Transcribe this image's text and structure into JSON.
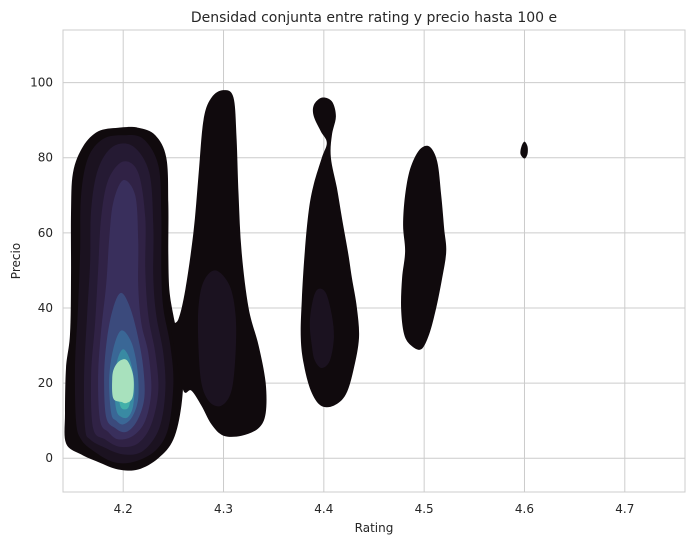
{
  "chart_data": {
    "type": "kde",
    "title": "Densidad conjunta entre rating y precio hasta 100 e",
    "xlabel": "Rating",
    "ylabel": "Precio",
    "xlim": [
      4.14,
      4.76
    ],
    "ylim": [
      -9,
      114
    ],
    "xticks": [
      4.2,
      4.3,
      4.4,
      4.5,
      4.6,
      4.7
    ],
    "yticks": [
      0,
      20,
      40,
      60,
      80,
      100
    ],
    "xtick_labels": [
      "4.2",
      "4.3",
      "4.4",
      "4.5",
      "4.6",
      "4.7"
    ],
    "ytick_labels": [
      "0",
      "20",
      "40",
      "60",
      "80",
      "100"
    ],
    "grid": true,
    "colormap": "mako_r",
    "colors": {
      "grid": "#cccccc",
      "axes_edge": "#cccccc",
      "text": "#262626",
      "levels": [
        "#100a0d",
        "#1b1220",
        "#251a33",
        "#302245",
        "#392f5c",
        "#3b4a7c",
        "#3a6796",
        "#398aa3",
        "#43b0a9",
        "#a8e1bd"
      ]
    },
    "clusters": [
      {
        "x": 4.2,
        "y_range": [
          -3,
          88
        ],
        "peak": [
          4.2,
          20
        ],
        "outline": [
          [
            4.143,
            4
          ],
          [
            4.142,
            12
          ],
          [
            4.143,
            24
          ],
          [
            4.147,
            33
          ],
          [
            4.148,
            48
          ],
          [
            4.148,
            65
          ],
          [
            4.15,
            76
          ],
          [
            4.16,
            83
          ],
          [
            4.175,
            87
          ],
          [
            4.195,
            88
          ],
          [
            4.215,
            88
          ],
          [
            4.232,
            86
          ],
          [
            4.243,
            80
          ],
          [
            4.245,
            68
          ],
          [
            4.245,
            55
          ],
          [
            4.246,
            45
          ],
          [
            4.25,
            38
          ],
          [
            4.255,
            32
          ],
          [
            4.26,
            25
          ],
          [
            4.258,
            14
          ],
          [
            4.25,
            5
          ],
          [
            4.235,
            0
          ],
          [
            4.215,
            -3
          ],
          [
            4.195,
            -3
          ],
          [
            4.175,
            -1
          ],
          [
            4.158,
            1
          ]
        ],
        "levels": [
          [
            [
              4.153,
              10
            ],
            [
              4.152,
              25
            ],
            [
              4.155,
              40
            ],
            [
              4.157,
              55
            ],
            [
              4.158,
              70
            ],
            [
              4.165,
              80
            ],
            [
              4.18,
              85
            ],
            [
              4.2,
              86
            ],
            [
              4.22,
              85
            ],
            [
              4.235,
              78
            ],
            [
              4.238,
              65
            ],
            [
              4.238,
              50
            ],
            [
              4.24,
              40
            ],
            [
              4.247,
              30
            ],
            [
              4.25,
              20
            ],
            [
              4.245,
              8
            ],
            [
              4.232,
              2
            ],
            [
              4.21,
              -1
            ],
            [
              4.19,
              -1
            ],
            [
              4.17,
              2
            ],
            [
              4.158,
              5
            ]
          ],
          [
            [
              4.162,
              8
            ],
            [
              4.161,
              22
            ],
            [
              4.164,
              38
            ],
            [
              4.167,
              52
            ],
            [
              4.168,
              66
            ],
            [
              4.175,
              77
            ],
            [
              4.19,
              83
            ],
            [
              4.21,
              83
            ],
            [
              4.226,
              76
            ],
            [
              4.23,
              62
            ],
            [
              4.23,
              48
            ],
            [
              4.233,
              38
            ],
            [
              4.24,
              28
            ],
            [
              4.242,
              18
            ],
            [
              4.236,
              8
            ],
            [
              4.22,
              2
            ],
            [
              4.2,
              1
            ],
            [
              4.18,
              3
            ],
            [
              4.167,
              5
            ]
          ],
          [
            [
              4.17,
              8
            ],
            [
              4.168,
              22
            ],
            [
              4.172,
              36
            ],
            [
              4.175,
              50
            ],
            [
              4.178,
              64
            ],
            [
              4.185,
              74
            ],
            [
              4.2,
              79
            ],
            [
              4.215,
              76
            ],
            [
              4.222,
              64
            ],
            [
              4.222,
              50
            ],
            [
              4.225,
              38
            ],
            [
              4.232,
              28
            ],
            [
              4.235,
              18
            ],
            [
              4.228,
              9
            ],
            [
              4.215,
              4
            ],
            [
              4.197,
              3
            ],
            [
              4.182,
              5
            ]
          ],
          [
            [
              4.177,
              10
            ],
            [
              4.175,
              22
            ],
            [
              4.178,
              34
            ],
            [
              4.183,
              46
            ],
            [
              4.186,
              58
            ],
            [
              4.19,
              68
            ],
            [
              4.2,
              74
            ],
            [
              4.212,
              70
            ],
            [
              4.215,
              58
            ],
            [
              4.215,
              46
            ],
            [
              4.218,
              36
            ],
            [
              4.225,
              28
            ],
            [
              4.228,
              18
            ],
            [
              4.222,
              10
            ],
            [
              4.21,
              6
            ],
            [
              4.195,
              5
            ],
            [
              4.185,
              7
            ]
          ],
          [
            [
              4.183,
              11
            ],
            [
              4.181,
              22
            ],
            [
              4.184,
              32
            ],
            [
              4.19,
              40
            ],
            [
              4.198,
              44
            ],
            [
              4.207,
              40
            ],
            [
              4.215,
              32
            ],
            [
              4.22,
              24
            ],
            [
              4.221,
              16
            ],
            [
              4.214,
              10
            ],
            [
              4.203,
              7
            ],
            [
              4.192,
              8
            ]
          ],
          [
            [
              4.188,
              12
            ],
            [
              4.186,
              21
            ],
            [
              4.19,
              29
            ],
            [
              4.198,
              34
            ],
            [
              4.208,
              31
            ],
            [
              4.214,
              24
            ],
            [
              4.215,
              16
            ],
            [
              4.209,
              11
            ],
            [
              4.2,
              9
            ],
            [
              4.193,
              10
            ]
          ],
          [
            [
              4.193,
              13
            ],
            [
              4.191,
              20
            ],
            [
              4.194,
              26
            ],
            [
              4.2,
              29
            ],
            [
              4.207,
              26
            ],
            [
              4.211,
              20
            ],
            [
              4.21,
              14
            ],
            [
              4.205,
              11
            ],
            [
              4.198,
              11
            ]
          ],
          [
            [
              4.197,
              14
            ],
            [
              4.195,
              19
            ],
            [
              4.197,
              23
            ],
            [
              4.202,
              25
            ],
            [
              4.206,
              22
            ],
            [
              4.208,
              18
            ],
            [
              4.206,
              14
            ],
            [
              4.202,
              13
            ]
          ],
          [
            [
              4.199,
              15
            ],
            [
              4.198,
              18
            ],
            [
              4.2,
              22
            ],
            [
              4.205,
              22
            ],
            [
              4.207,
              18
            ],
            [
              4.205,
              15
            ]
          ],
          [
            [
              4.19,
              16
            ],
            [
              4.189,
              21
            ],
            [
              4.191,
              24
            ],
            [
              4.197,
              26
            ],
            [
              4.204,
              26
            ],
            [
              4.21,
              22
            ],
            [
              4.21,
              17
            ],
            [
              4.206,
              15
            ],
            [
              4.198,
              15
            ]
          ]
        ]
      },
      {
        "x": 4.3,
        "y_range": [
          7,
          98
        ],
        "outline": [
          [
            4.26,
            18
          ],
          [
            4.252,
            28
          ],
          [
            4.248,
            35
          ],
          [
            4.255,
            37
          ],
          [
            4.262,
            45
          ],
          [
            4.27,
            60
          ],
          [
            4.275,
            75
          ],
          [
            4.28,
            90
          ],
          [
            4.288,
            96
          ],
          [
            4.3,
            98
          ],
          [
            4.31,
            96
          ],
          [
            4.313,
            85
          ],
          [
            4.315,
            70
          ],
          [
            4.318,
            55
          ],
          [
            4.325,
            40
          ],
          [
            4.335,
            30
          ],
          [
            4.342,
            20
          ],
          [
            4.342,
            12
          ],
          [
            4.335,
            8
          ],
          [
            4.318,
            6
          ],
          [
            4.3,
            6
          ],
          [
            4.288,
            9
          ],
          [
            4.278,
            14
          ],
          [
            4.268,
            18
          ]
        ],
        "inner": [
          [
            4.278,
            20
          ],
          [
            4.275,
            30
          ],
          [
            4.275,
            40
          ],
          [
            4.28,
            47
          ],
          [
            4.292,
            50
          ],
          [
            4.306,
            46
          ],
          [
            4.312,
            38
          ],
          [
            4.312,
            28
          ],
          [
            4.308,
            18
          ],
          [
            4.298,
            14
          ],
          [
            4.286,
            15
          ]
        ]
      },
      {
        "x": 4.4,
        "y_range": [
          13,
          96
        ],
        "outline": [
          [
            4.38,
            25
          ],
          [
            4.377,
            32
          ],
          [
            4.378,
            42
          ],
          [
            4.381,
            55
          ],
          [
            4.385,
            66
          ],
          [
            4.39,
            73
          ],
          [
            4.398,
            80
          ],
          [
            4.403,
            84
          ],
          [
            4.397,
            87
          ],
          [
            4.39,
            91
          ],
          [
            4.39,
            94
          ],
          [
            4.398,
            96
          ],
          [
            4.408,
            95
          ],
          [
            4.412,
            91
          ],
          [
            4.408,
            86
          ],
          [
            4.407,
            80
          ],
          [
            4.413,
            72
          ],
          [
            4.418,
            64
          ],
          [
            4.424,
            55
          ],
          [
            4.428,
            48
          ],
          [
            4.433,
            40
          ],
          [
            4.435,
            32
          ],
          [
            4.43,
            24
          ],
          [
            4.422,
            17
          ],
          [
            4.41,
            14
          ],
          [
            4.397,
            14
          ],
          [
            4.387,
            18
          ]
        ],
        "inner": [
          [
            4.388,
            30
          ],
          [
            4.386,
            36
          ],
          [
            4.389,
            42
          ],
          [
            4.394,
            45
          ],
          [
            4.402,
            44
          ],
          [
            4.408,
            38
          ],
          [
            4.41,
            32
          ],
          [
            4.406,
            26
          ],
          [
            4.398,
            24
          ],
          [
            4.391,
            26
          ]
        ]
      },
      {
        "x": 4.5,
        "y_range": [
          29,
          83
        ],
        "outline": [
          [
            4.48,
            33
          ],
          [
            4.477,
            40
          ],
          [
            4.478,
            48
          ],
          [
            4.481,
            55
          ],
          [
            4.479,
            62
          ],
          [
            4.481,
            70
          ],
          [
            4.486,
            77
          ],
          [
            4.495,
            82
          ],
          [
            4.505,
            83
          ],
          [
            4.513,
            79
          ],
          [
            4.517,
            70
          ],
          [
            4.52,
            61
          ],
          [
            4.522,
            55
          ],
          [
            4.518,
            48
          ],
          [
            4.512,
            40
          ],
          [
            4.505,
            33
          ],
          [
            4.497,
            29
          ],
          [
            4.487,
            30
          ]
        ]
      },
      {
        "x": 4.6,
        "y_range": [
          80,
          84
        ],
        "outline": [
          [
            4.596,
            81
          ],
          [
            4.597,
            83
          ],
          [
            4.6,
            84.3
          ],
          [
            4.603,
            83
          ],
          [
            4.603,
            81
          ],
          [
            4.6,
            79.8
          ]
        ]
      }
    ]
  }
}
